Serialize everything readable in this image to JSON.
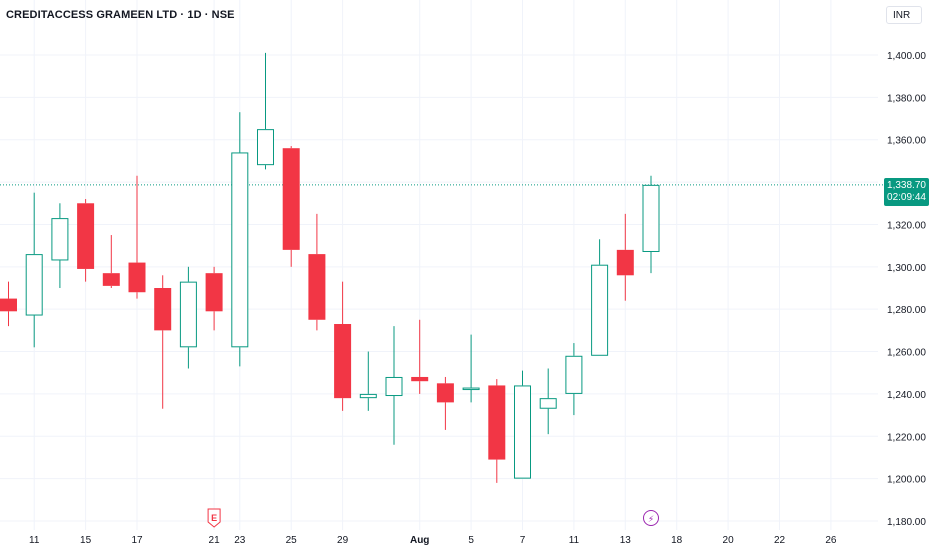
{
  "header": {
    "title": "CREDITACCESS GRAMEEN LTD · 1D · NSE",
    "currency": "INR"
  },
  "last_price": {
    "value": "1,338.70",
    "countdown": "02:09:44"
  },
  "colors": {
    "up": "#089981",
    "down": "#f23645",
    "grid": "#f0f3fa",
    "axis_text": "#131722",
    "price_line": "#089981",
    "event_icon": "#f23645",
    "split_icon": "#9c27b0"
  },
  "chart_data": {
    "type": "candlestick",
    "ylim": [
      1180,
      1410
    ],
    "y_ticks": [
      1180,
      1200,
      1220,
      1240,
      1260,
      1280,
      1300,
      1320,
      1340,
      1360,
      1380,
      1400
    ],
    "y_tick_labels": [
      "1,180.00",
      "1,200.00",
      "1,220.00",
      "1,240.00",
      "1,260.00",
      "1,280.00",
      "1,300.00",
      "1,320.00",
      "1,340.00",
      "1,360.00",
      "1,380.00",
      "1,400.00"
    ],
    "x_labels": [
      {
        "index": 1,
        "label": "11"
      },
      {
        "index": 3,
        "label": "15"
      },
      {
        "index": 5,
        "label": "17"
      },
      {
        "index": 8,
        "label": "21"
      },
      {
        "index": 9,
        "label": "23"
      },
      {
        "index": 11,
        "label": "25"
      },
      {
        "index": 13,
        "label": "29"
      },
      {
        "index": 16,
        "label": "Aug"
      },
      {
        "index": 18,
        "label": "5"
      },
      {
        "index": 20,
        "label": "7"
      },
      {
        "index": 22,
        "label": "11"
      },
      {
        "index": 24,
        "label": "13"
      },
      {
        "index": 26,
        "label": "18"
      },
      {
        "index": 28,
        "label": "20"
      },
      {
        "index": 30,
        "label": "22"
      },
      {
        "index": 32,
        "label": "26"
      }
    ],
    "candles": [
      {
        "o": 1285,
        "h": 1293,
        "l": 1272,
        "c": 1279
      },
      {
        "o": 1277,
        "h": 1335,
        "l": 1262,
        "c": 1306
      },
      {
        "o": 1303,
        "h": 1330,
        "l": 1290,
        "c": 1323
      },
      {
        "o": 1330,
        "h": 1332,
        "l": 1293,
        "c": 1299
      },
      {
        "o": 1297,
        "h": 1315,
        "l": 1290,
        "c": 1291
      },
      {
        "o": 1302,
        "h": 1343,
        "l": 1285,
        "c": 1288
      },
      {
        "o": 1290,
        "h": 1296,
        "l": 1233,
        "c": 1270
      },
      {
        "o": 1262,
        "h": 1300,
        "l": 1252,
        "c": 1293
      },
      {
        "o": 1297,
        "h": 1300,
        "l": 1270,
        "c": 1279
      },
      {
        "o": 1262,
        "h": 1373,
        "l": 1253,
        "c": 1354
      },
      {
        "o": 1348,
        "h": 1401,
        "l": 1346,
        "c": 1365
      },
      {
        "o": 1356,
        "h": 1357,
        "l": 1300,
        "c": 1308
      },
      {
        "o": 1306,
        "h": 1325,
        "l": 1270,
        "c": 1275
      },
      {
        "o": 1273,
        "h": 1293,
        "l": 1232,
        "c": 1238
      },
      {
        "o": 1238,
        "h": 1260,
        "l": 1232,
        "c": 1240
      },
      {
        "o": 1239,
        "h": 1272,
        "l": 1216,
        "c": 1248
      },
      {
        "o": 1248,
        "h": 1275,
        "l": 1240,
        "c": 1246
      },
      {
        "o": 1245,
        "h": 1248,
        "l": 1223,
        "c": 1236
      },
      {
        "o": 1242,
        "h": 1268,
        "l": 1236,
        "c": 1243
      },
      {
        "o": 1244,
        "h": 1247,
        "l": 1198,
        "c": 1209
      },
      {
        "o": 1200,
        "h": 1251,
        "l": 1200,
        "c": 1244
      },
      {
        "o": 1233,
        "h": 1252,
        "l": 1221,
        "c": 1238
      },
      {
        "o": 1240,
        "h": 1264,
        "l": 1230,
        "c": 1258
      },
      {
        "o": 1258,
        "h": 1313,
        "l": 1258,
        "c": 1301
      },
      {
        "o": 1308,
        "h": 1325,
        "l": 1284,
        "c": 1296
      },
      {
        "o": 1307,
        "h": 1343,
        "l": 1297,
        "c": 1338.7
      }
    ],
    "events": [
      {
        "index": 8,
        "label": "E",
        "kind": "earnings"
      },
      {
        "index": 25,
        "label": "⚡",
        "kind": "split"
      }
    ]
  }
}
